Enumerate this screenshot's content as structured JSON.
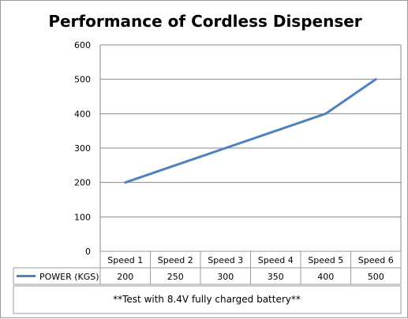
{
  "chart_data": {
    "type": "line",
    "title": "Performance of Cordless Dispenser",
    "categories": [
      "Speed 1",
      "Speed 2",
      "Speed 3",
      "Speed 4",
      "Speed 5",
      "Speed 6"
    ],
    "series": [
      {
        "name": "POWER (KGS)",
        "values": [
          200,
          250,
          300,
          350,
          400,
          500
        ],
        "color": "#4f81bd"
      }
    ],
    "ylim": [
      0,
      600
    ],
    "yticks": [
      0,
      100,
      200,
      300,
      400,
      500,
      600
    ],
    "grid": true,
    "legend": "data-table-left",
    "note": "**Test with 8.4V fully charged battery**"
  }
}
